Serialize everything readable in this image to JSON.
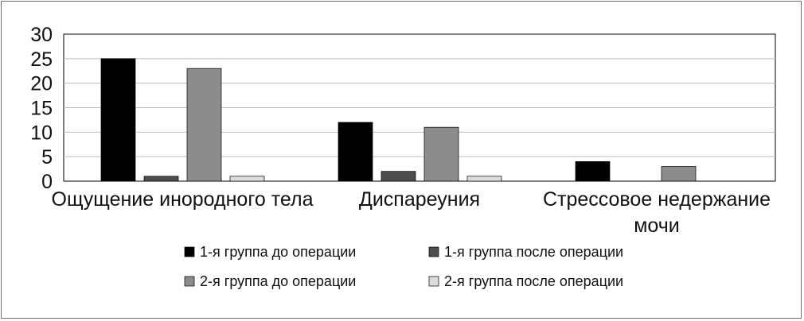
{
  "chart_data": {
    "type": "bar",
    "title": "",
    "xlabel": "",
    "ylabel": "",
    "ylim": [
      0,
      30
    ],
    "yticks": [
      0,
      5,
      10,
      15,
      20,
      25,
      30
    ],
    "grid": true,
    "legend_position": "bottom",
    "categories": [
      [
        "Ощущение инородного тела"
      ],
      [
        "Диспареуния"
      ],
      [
        "Стрессовое недержание",
        "мочи"
      ]
    ],
    "series": [
      {
        "name": "1-я группа до операции",
        "color": "#000000",
        "values": [
          25,
          12,
          4
        ]
      },
      {
        "name": "1-я группа после операции",
        "color": "#4d4d4d",
        "values": [
          1,
          2,
          0
        ]
      },
      {
        "name": "2-я группа до операции",
        "color": "#8c8c8c",
        "values": [
          23,
          11,
          3
        ]
      },
      {
        "name": "2-я группа после операции",
        "color": "#dcdcdc",
        "values": [
          1,
          1,
          0
        ]
      }
    ]
  }
}
